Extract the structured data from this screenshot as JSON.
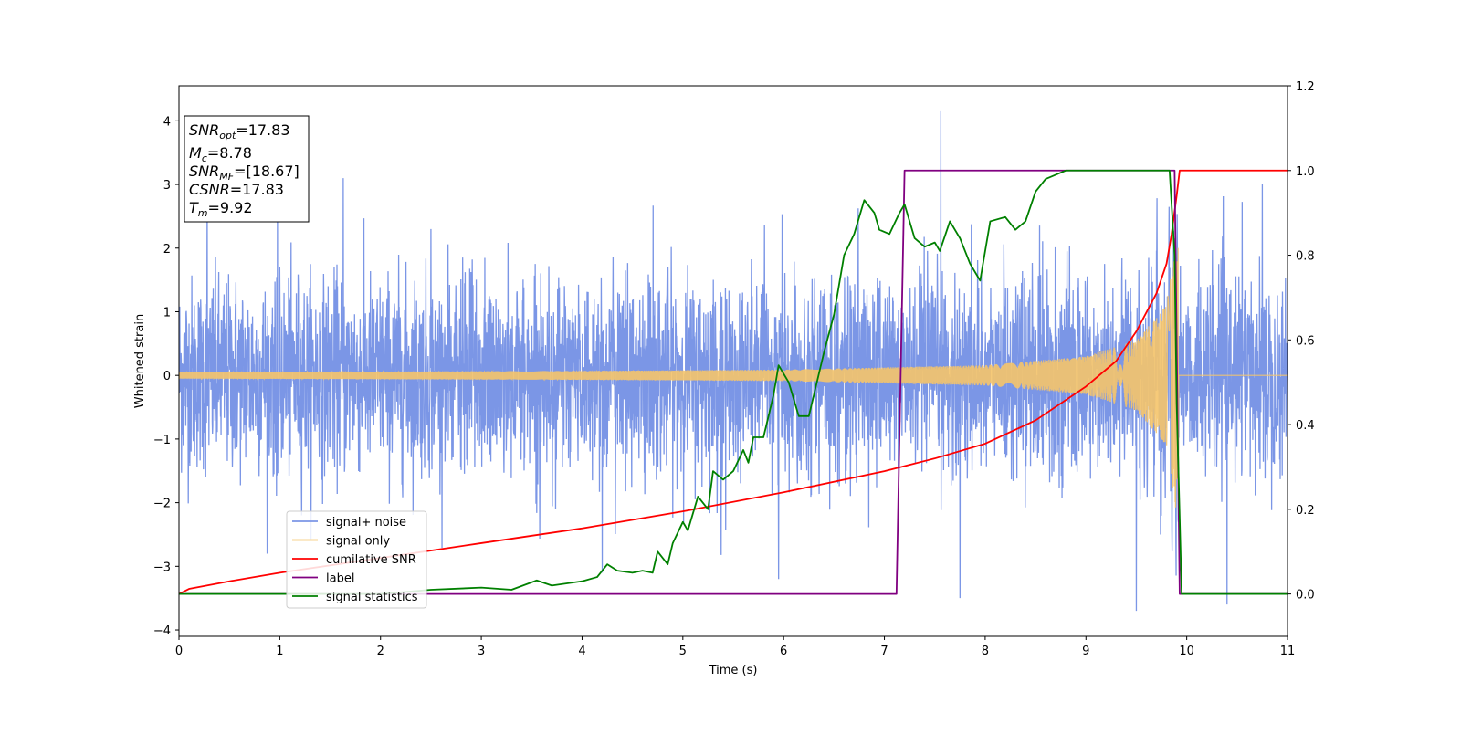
{
  "chart_data": {
    "type": "line",
    "title": "",
    "xlabel": "Time (s)",
    "ylabel": "Whitened strain",
    "y2label": "",
    "xlim": [
      0,
      11
    ],
    "ylim": [
      -4.1,
      4.55
    ],
    "y2lim": [
      -0.1,
      1.2
    ],
    "xticks": [
      "0",
      "1",
      "2",
      "3",
      "4",
      "5",
      "6",
      "7",
      "8",
      "9",
      "10",
      "11"
    ],
    "yticks": [
      "4",
      "3",
      "2",
      "1",
      "0",
      "−1",
      "−2",
      "−3",
      "−4"
    ],
    "y2ticks": [
      "1.2",
      "1.0",
      "0.8",
      "0.6",
      "0.4",
      "0.2",
      "0.0"
    ],
    "grid": false,
    "legend_position": "lower-left",
    "annotation": {
      "lines": [
        {
          "base": "SNR",
          "sub": "opt",
          "rest": "=17.83"
        },
        {
          "base": "M",
          "sub": "c",
          "rest": "=8.78"
        },
        {
          "base": "SNR",
          "sub": "MF",
          "rest": "=[18.67]"
        },
        {
          "base": "CSNR",
          "sub": "",
          "rest": "=17.83"
        },
        {
          "base": "T",
          "sub": "m",
          "rest": "=9.92"
        }
      ]
    },
    "series": [
      {
        "name": "signal+ noise",
        "color": "#7b96e6",
        "axis": "left",
        "description_values": {
          "approx_std": 0.75,
          "spikes": [
            [
              0.28,
              2.9
            ],
            [
              1.63,
              3.1
            ],
            [
              2.5,
              2.3
            ],
            [
              4.2,
              -3.1
            ],
            [
              5.95,
              -3.2
            ],
            [
              7.56,
              4.15
            ],
            [
              7.75,
              -3.5
            ],
            [
              9.5,
              -3.7
            ],
            [
              10.4,
              -3.6
            ],
            [
              10.75,
              3.0
            ]
          ]
        }
      },
      {
        "name": "signal only",
        "color": "#f5c46a",
        "axis": "left",
        "envelope": {
          "t_merge": 9.92,
          "t_end": 9.93,
          "amp_at": [
            [
              0,
              0.05
            ],
            [
              4,
              0.07
            ],
            [
              6,
              0.09
            ],
            [
              8,
              0.16
            ],
            [
              9,
              0.3
            ],
            [
              9.5,
              0.55
            ],
            [
              9.8,
              1.1
            ],
            [
              9.9,
              2.2
            ]
          ]
        }
      },
      {
        "name": "cumilative SNR",
        "color": "#ff0000",
        "axis": "right",
        "x": [
          0,
          0.1,
          0.5,
          1,
          2,
          3,
          4,
          5,
          6,
          7,
          7.5,
          8,
          8.5,
          9,
          9.3,
          9.5,
          9.7,
          9.8,
          9.85,
          9.9,
          9.93,
          9.95,
          11
        ],
        "y": [
          0.0,
          0.012,
          0.03,
          0.05,
          0.085,
          0.12,
          0.155,
          0.195,
          0.24,
          0.29,
          0.32,
          0.355,
          0.41,
          0.49,
          0.55,
          0.62,
          0.71,
          0.78,
          0.85,
          0.94,
          1.0,
          1.0,
          1.0
        ]
      },
      {
        "name": "label",
        "color": "#800080",
        "axis": "right",
        "x": [
          0,
          7.12,
          7.2,
          9.88,
          9.93,
          11
        ],
        "y": [
          0,
          0,
          1,
          1,
          0,
          0
        ]
      },
      {
        "name": "signal statistics",
        "color": "#008000",
        "axis": "right",
        "x": [
          0,
          1,
          2,
          2.5,
          3,
          3.3,
          3.55,
          3.7,
          4.0,
          4.15,
          4.25,
          4.35,
          4.5,
          4.6,
          4.7,
          4.75,
          4.85,
          4.9,
          5.0,
          5.05,
          5.15,
          5.25,
          5.3,
          5.4,
          5.5,
          5.6,
          5.65,
          5.7,
          5.8,
          5.9,
          5.95,
          6.05,
          6.15,
          6.25,
          6.4,
          6.5,
          6.6,
          6.7,
          6.8,
          6.9,
          6.95,
          7.05,
          7.15,
          7.2,
          7.3,
          7.4,
          7.5,
          7.55,
          7.65,
          7.75,
          7.85,
          7.95,
          8.05,
          8.2,
          8.3,
          8.4,
          8.5,
          8.6,
          8.7,
          8.8,
          9.0,
          9.2,
          9.5,
          9.83,
          9.88,
          9.9,
          9.95,
          10.0,
          11
        ],
        "y": [
          0.0,
          0.0,
          0.0,
          0.01,
          0.015,
          0.01,
          0.032,
          0.02,
          0.03,
          0.04,
          0.07,
          0.055,
          0.05,
          0.055,
          0.05,
          0.1,
          0.07,
          0.12,
          0.17,
          0.15,
          0.23,
          0.2,
          0.29,
          0.27,
          0.29,
          0.34,
          0.31,
          0.37,
          0.37,
          0.47,
          0.54,
          0.5,
          0.42,
          0.42,
          0.57,
          0.66,
          0.8,
          0.85,
          0.93,
          0.9,
          0.86,
          0.85,
          0.9,
          0.92,
          0.84,
          0.82,
          0.83,
          0.81,
          0.88,
          0.84,
          0.78,
          0.74,
          0.88,
          0.89,
          0.86,
          0.88,
          0.95,
          0.98,
          0.99,
          1.0,
          1.0,
          1.0,
          1.0,
          1.0,
          0.8,
          0.45,
          0.0,
          0.0,
          0.0
        ]
      }
    ]
  }
}
